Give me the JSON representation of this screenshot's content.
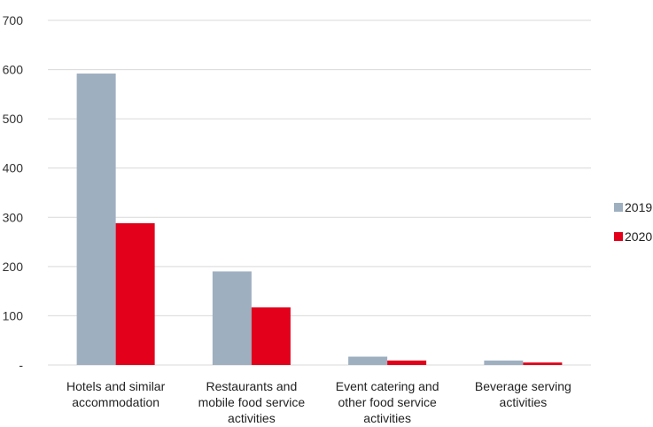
{
  "chart_data": {
    "type": "bar",
    "categories": [
      [
        "Hotels and similar",
        "accommodation"
      ],
      [
        "Restaurants and",
        "mobile food service",
        "activities"
      ],
      [
        "Event catering and",
        "other food service",
        "activities"
      ],
      [
        "Beverage serving",
        "activities"
      ]
    ],
    "series": [
      {
        "name": "2019",
        "color": "#9eafc0",
        "values": [
          592,
          190,
          17,
          9
        ]
      },
      {
        "name": "2020",
        "color": "#e2001a",
        "values": [
          288,
          117,
          9,
          5
        ]
      }
    ],
    "y_ticks": [
      {
        "value": 0,
        "label": "-"
      },
      {
        "value": 100,
        "label": "100"
      },
      {
        "value": 200,
        "label": "200"
      },
      {
        "value": 300,
        "label": "300"
      },
      {
        "value": 400,
        "label": "400"
      },
      {
        "value": 500,
        "label": "500"
      },
      {
        "value": 600,
        "label": "600"
      },
      {
        "value": 700,
        "label": "700"
      }
    ],
    "ylim": [
      0,
      700
    ],
    "grid": true,
    "gridline_color": "#d9d9d9",
    "legend_position": "right",
    "title": "",
    "xlabel": "",
    "ylabel": ""
  }
}
